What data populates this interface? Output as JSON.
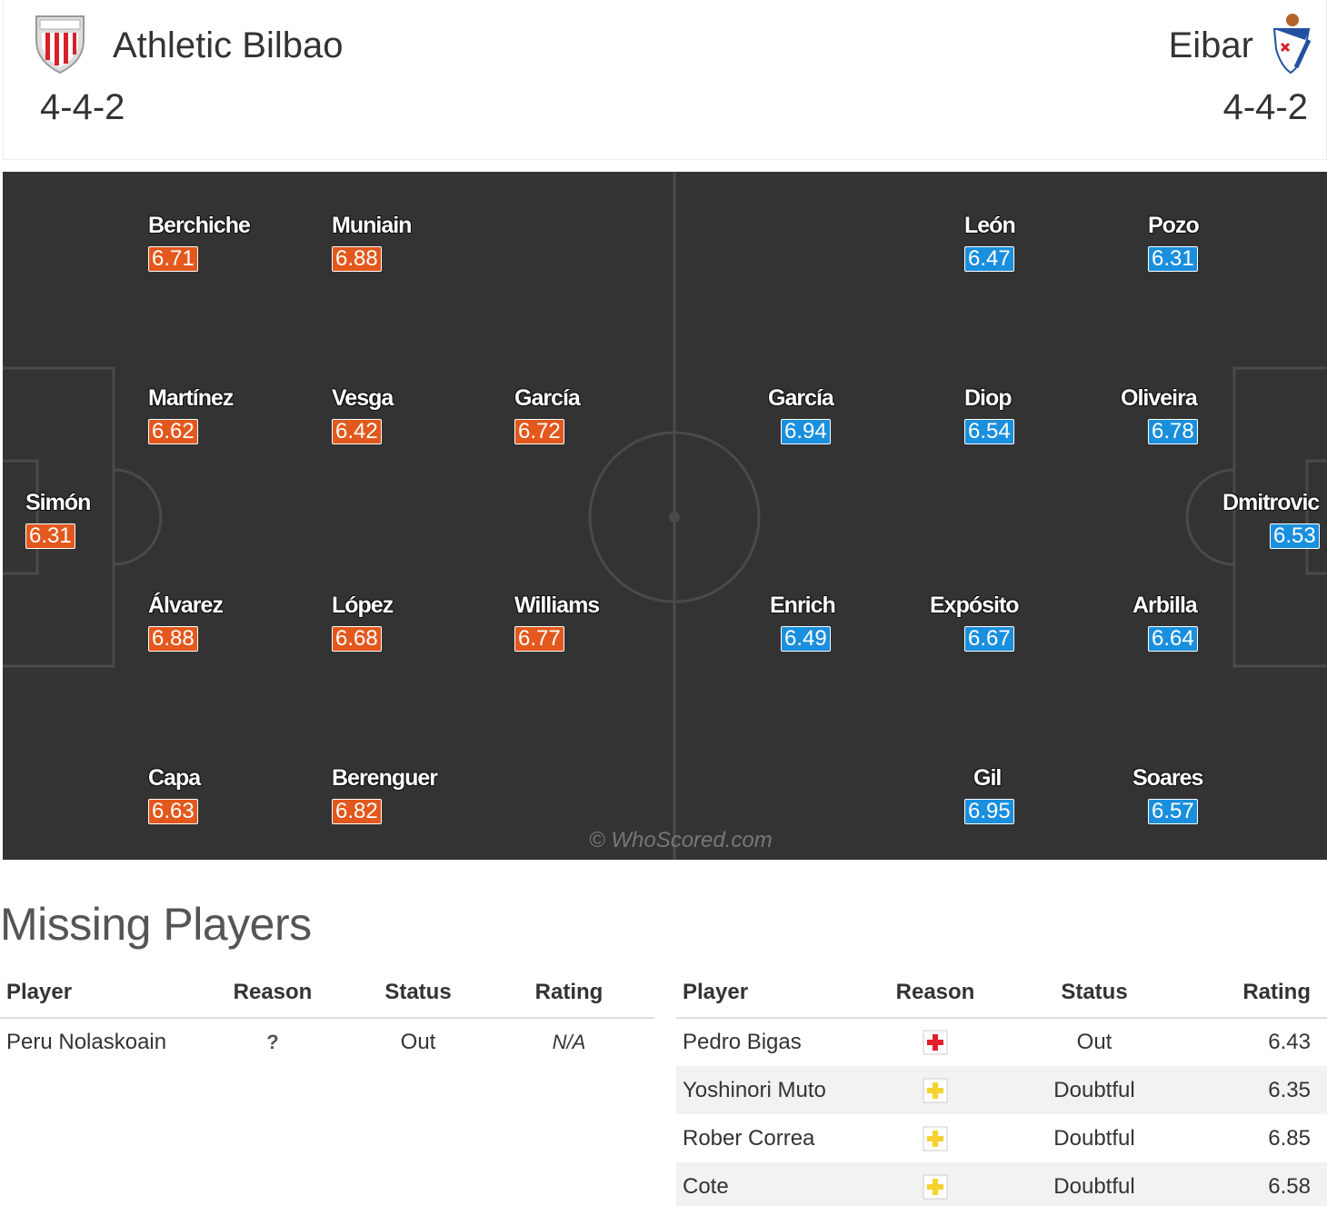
{
  "header": {
    "home": {
      "name": "Athletic Bilbao",
      "formation": "4-4-2"
    },
    "away": {
      "name": "Eibar",
      "formation": "4-4-2"
    }
  },
  "pitch": {
    "watermark": "© WhoScored.com",
    "home_players": [
      {
        "name": "Berchiche",
        "rating": "6.71"
      },
      {
        "name": "Muniain",
        "rating": "6.88"
      },
      {
        "name": "Martínez",
        "rating": "6.62"
      },
      {
        "name": "Vesga",
        "rating": "6.42"
      },
      {
        "name": "García",
        "rating": "6.72"
      },
      {
        "name": "Simón",
        "rating": "6.31"
      },
      {
        "name": "Álvarez",
        "rating": "6.88"
      },
      {
        "name": "López",
        "rating": "6.68"
      },
      {
        "name": "Williams",
        "rating": "6.77"
      },
      {
        "name": "Capa",
        "rating": "6.63"
      },
      {
        "name": "Berenguer",
        "rating": "6.82"
      }
    ],
    "away_players": [
      {
        "name": "León",
        "rating": "6.47"
      },
      {
        "name": "Pozo",
        "rating": "6.31"
      },
      {
        "name": "García",
        "rating": "6.94"
      },
      {
        "name": "Diop",
        "rating": "6.54"
      },
      {
        "name": "Oliveira",
        "rating": "6.78"
      },
      {
        "name": "Dmitrovic",
        "rating": "6.53"
      },
      {
        "name": "Enrich",
        "rating": "6.49"
      },
      {
        "name": "Expósito",
        "rating": "6.67"
      },
      {
        "name": "Arbilla",
        "rating": "6.64"
      },
      {
        "name": "Gil",
        "rating": "6.95"
      },
      {
        "name": "Soares",
        "rating": "6.57"
      }
    ]
  },
  "missing": {
    "title": "Missing Players",
    "columns": [
      "Player",
      "Reason",
      "Status",
      "Rating"
    ],
    "home": [
      {
        "player": "Peru Nolaskoain",
        "reason_icon": "question-icon",
        "reason_text": "?",
        "status": "Out",
        "rating": "N/A"
      }
    ],
    "away": [
      {
        "player": "Pedro Bigas",
        "reason_icon": "injury-red-cross-icon",
        "status": "Out",
        "rating": "6.43"
      },
      {
        "player": "Yoshinori Muto",
        "reason_icon": "doubtful-yellow-cross-icon",
        "status": "Doubtful",
        "rating": "6.35"
      },
      {
        "player": "Rober Correa",
        "reason_icon": "doubtful-yellow-cross-icon",
        "status": "Doubtful",
        "rating": "6.85"
      },
      {
        "player": "Cote",
        "reason_icon": "doubtful-yellow-cross-icon",
        "status": "Doubtful",
        "rating": "6.58"
      }
    ]
  },
  "colors": {
    "home_rating": "#e3581c",
    "away_rating": "#1a8fdd",
    "pitch": "#333333",
    "injury_cross": "#e0202a",
    "doubtful_cross": "#f5d22e"
  }
}
